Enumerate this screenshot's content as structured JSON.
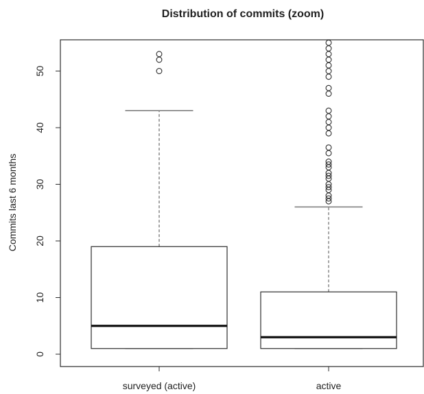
{
  "chart_data": {
    "type": "boxplot",
    "title": "Distribution of commits (zoom)",
    "xlabel": "",
    "ylabel": "Commits last 6 months",
    "ylim": [
      0,
      55
    ],
    "yticks": [
      0,
      10,
      20,
      30,
      40,
      50
    ],
    "categories": [
      "surveyed (active)",
      "active"
    ],
    "boxes": [
      {
        "category": "surveyed (active)",
        "whisker_low": 1,
        "q1": 1,
        "median": 5,
        "q3": 19,
        "whisker_high": 43,
        "outliers": [
          50,
          52,
          53
        ]
      },
      {
        "category": "active",
        "whisker_low": 1,
        "q1": 1,
        "median": 3,
        "q3": 11,
        "whisker_high": 26,
        "outliers": [
          27,
          27.5,
          28,
          29,
          29.5,
          30,
          31,
          31.5,
          32,
          33,
          33.5,
          34,
          35.5,
          36.5,
          39,
          40,
          41,
          42,
          43,
          46,
          47,
          49,
          50,
          51,
          52,
          53,
          54,
          55
        ]
      }
    ],
    "grid": false,
    "legend": "none",
    "colors": {
      "box_fill": "#ffffff",
      "stroke": "#2b2b2b",
      "median": "#111111",
      "whisker": "#666666",
      "cap": "#777777"
    }
  }
}
